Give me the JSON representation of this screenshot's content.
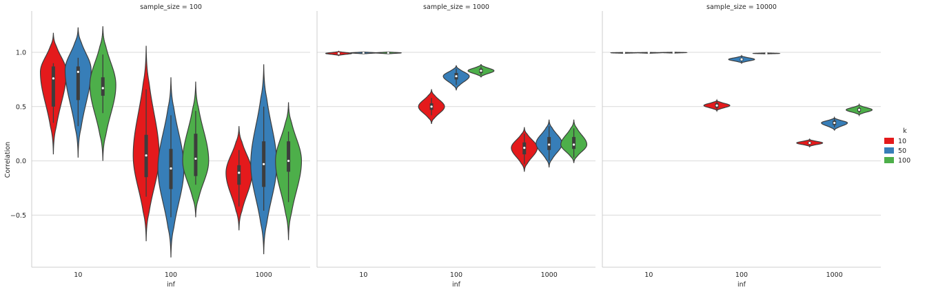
{
  "chart_data": {
    "type": "violin",
    "ylabel": "Correlation",
    "xlabel": "inf",
    "categories": [
      "10",
      "100",
      "1000"
    ],
    "ylim": [
      -0.98,
      1.33
    ],
    "yticks": [
      -0.5,
      0.0,
      0.5,
      1.0
    ],
    "ytick_labels": [
      "−0.5",
      "0.0",
      "0.5",
      "1.0"
    ],
    "grid": "horizontal",
    "legend": {
      "title": "k",
      "placement": "right",
      "entries": [
        {
          "label": "10",
          "color": "#e41a1c"
        },
        {
          "label": "50",
          "color": "#377eb8"
        },
        {
          "label": "100",
          "color": "#4daf4a"
        }
      ]
    },
    "facets": [
      {
        "title": "sample_size = 100",
        "groups": [
          {
            "inf": "10",
            "k": "10",
            "min": 0.06,
            "max": 1.18,
            "q1": 0.5,
            "median": 0.76,
            "q3": 0.87,
            "whisker_low": 0.35,
            "whisker_high": 0.9,
            "mode": 0.82
          },
          {
            "inf": "10",
            "k": "50",
            "min": 0.03,
            "max": 1.23,
            "q1": 0.56,
            "median": 0.82,
            "q3": 0.87,
            "whisker_low": 0.32,
            "whisker_high": 0.95,
            "mode": 0.84
          },
          {
            "inf": "10",
            "k": "100",
            "min": 0.0,
            "max": 1.24,
            "q1": 0.6,
            "median": 0.67,
            "q3": 0.77,
            "whisker_low": 0.44,
            "whisker_high": 0.98,
            "mode": 0.7
          },
          {
            "inf": "100",
            "k": "10",
            "min": -0.74,
            "max": 1.06,
            "q1": -0.15,
            "median": 0.05,
            "q3": 0.24,
            "whisker_low": -0.33,
            "whisker_high": 0.66,
            "mode": 0.05
          },
          {
            "inf": "100",
            "k": "50",
            "min": -0.89,
            "max": 0.77,
            "q1": -0.26,
            "median": -0.07,
            "q3": 0.11,
            "whisker_low": -0.52,
            "whisker_high": 0.42,
            "mode": -0.07
          },
          {
            "inf": "100",
            "k": "100",
            "min": -0.52,
            "max": 0.73,
            "q1": -0.14,
            "median": 0.02,
            "q3": 0.25,
            "whisker_low": -0.22,
            "whisker_high": 0.46,
            "mode": 0.0
          },
          {
            "inf": "1000",
            "k": "10",
            "min": -0.64,
            "max": 0.32,
            "q1": -0.22,
            "median": -0.11,
            "q3": -0.04,
            "whisker_low": -0.42,
            "whisker_high": 0.1,
            "mode": -0.11
          },
          {
            "inf": "1000",
            "k": "50",
            "min": -0.86,
            "max": 0.89,
            "q1": -0.24,
            "median": -0.03,
            "q3": 0.18,
            "whisker_low": -0.46,
            "whisker_high": 0.5,
            "mode": -0.03
          },
          {
            "inf": "1000",
            "k": "100",
            "min": -0.73,
            "max": 0.54,
            "q1": -0.1,
            "median": 0.0,
            "q3": 0.18,
            "whisker_low": -0.38,
            "whisker_high": 0.27,
            "mode": 0.0
          }
        ]
      },
      {
        "title": "sample_size = 1000",
        "groups": [
          {
            "inf": "10",
            "k": "10",
            "min": 0.97,
            "max": 1.01,
            "q1": 0.985,
            "median": 0.99,
            "q3": 0.995,
            "whisker_low": 0.975,
            "whisker_high": 1.0,
            "mode": 0.99
          },
          {
            "inf": "10",
            "k": "50",
            "min": 0.985,
            "max": 1.005,
            "q1": 0.992,
            "median": 0.995,
            "q3": 0.998,
            "whisker_low": 0.988,
            "whisker_high": 1.0,
            "mode": 0.995
          },
          {
            "inf": "10",
            "k": "100",
            "min": 0.985,
            "max": 1.005,
            "q1": 0.992,
            "median": 0.995,
            "q3": 0.998,
            "whisker_low": 0.988,
            "whisker_high": 1.0,
            "mode": 0.995
          },
          {
            "inf": "100",
            "k": "10",
            "min": 0.34,
            "max": 0.66,
            "q1": 0.47,
            "median": 0.5,
            "q3": 0.53,
            "whisker_low": 0.42,
            "whisker_high": 0.58,
            "mode": 0.5
          },
          {
            "inf": "100",
            "k": "50",
            "min": 0.65,
            "max": 0.88,
            "q1": 0.75,
            "median": 0.78,
            "q3": 0.81,
            "whisker_low": 0.7,
            "whisker_high": 0.85,
            "mode": 0.78
          },
          {
            "inf": "100",
            "k": "100",
            "min": 0.77,
            "max": 0.89,
            "q1": 0.81,
            "median": 0.83,
            "q3": 0.85,
            "whisker_low": 0.79,
            "whisker_high": 0.87,
            "mode": 0.83
          },
          {
            "inf": "1000",
            "k": "10",
            "min": -0.1,
            "max": 0.31,
            "q1": 0.06,
            "median": 0.12,
            "q3": 0.17,
            "whisker_low": -0.03,
            "whisker_high": 0.25,
            "mode": 0.12
          },
          {
            "inf": "1000",
            "k": "50",
            "min": -0.06,
            "max": 0.38,
            "q1": 0.1,
            "median": 0.15,
            "q3": 0.22,
            "whisker_low": 0.0,
            "whisker_high": 0.32,
            "mode": 0.16
          },
          {
            "inf": "1000",
            "k": "100",
            "min": -0.02,
            "max": 0.38,
            "q1": 0.11,
            "median": 0.15,
            "q3": 0.22,
            "whisker_low": 0.03,
            "whisker_high": 0.3,
            "mode": 0.15
          }
        ]
      },
      {
        "title": "sample_size = 10000",
        "groups": [
          {
            "inf": "10",
            "k": "10",
            "min": 0.99,
            "max": 1.0,
            "q1": 0.994,
            "median": 0.996,
            "q3": 0.998,
            "whisker_low": 0.99,
            "whisker_high": 1.0,
            "mode": 0.996
          },
          {
            "inf": "10",
            "k": "50",
            "min": 0.99,
            "max": 1.0,
            "q1": 0.995,
            "median": 0.997,
            "q3": 0.999,
            "whisker_low": 0.99,
            "whisker_high": 1.0,
            "mode": 0.997
          },
          {
            "inf": "10",
            "k": "100",
            "min": 0.992,
            "max": 1.002,
            "q1": 0.996,
            "median": 0.998,
            "q3": 0.999,
            "whisker_low": 0.994,
            "whisker_high": 1.0,
            "mode": 0.998
          },
          {
            "inf": "100",
            "k": "10",
            "min": 0.46,
            "max": 0.56,
            "q1": 0.49,
            "median": 0.51,
            "q3": 0.53,
            "whisker_low": 0.47,
            "whisker_high": 0.55,
            "mode": 0.51
          },
          {
            "inf": "100",
            "k": "50",
            "min": 0.9,
            "max": 0.97,
            "q1": 0.925,
            "median": 0.935,
            "q3": 0.945,
            "whisker_low": 0.91,
            "whisker_high": 0.96,
            "mode": 0.935
          },
          {
            "inf": "100",
            "k": "100",
            "min": 0.985,
            "max": 0.995,
            "q1": 0.988,
            "median": 0.99,
            "q3": 0.992,
            "whisker_low": 0.986,
            "whisker_high": 0.994,
            "mode": 0.99
          },
          {
            "inf": "1000",
            "k": "10",
            "min": 0.13,
            "max": 0.2,
            "q1": 0.155,
            "median": 0.165,
            "q3": 0.175,
            "whisker_low": 0.14,
            "whisker_high": 0.19,
            "mode": 0.165
          },
          {
            "inf": "1000",
            "k": "50",
            "min": 0.28,
            "max": 0.4,
            "q1": 0.33,
            "median": 0.35,
            "q3": 0.37,
            "whisker_low": 0.31,
            "whisker_high": 0.39,
            "mode": 0.35
          },
          {
            "inf": "1000",
            "k": "100",
            "min": 0.42,
            "max": 0.52,
            "q1": 0.455,
            "median": 0.47,
            "q3": 0.485,
            "whisker_low": 0.44,
            "whisker_high": 0.5,
            "mode": 0.47
          }
        ]
      }
    ]
  }
}
